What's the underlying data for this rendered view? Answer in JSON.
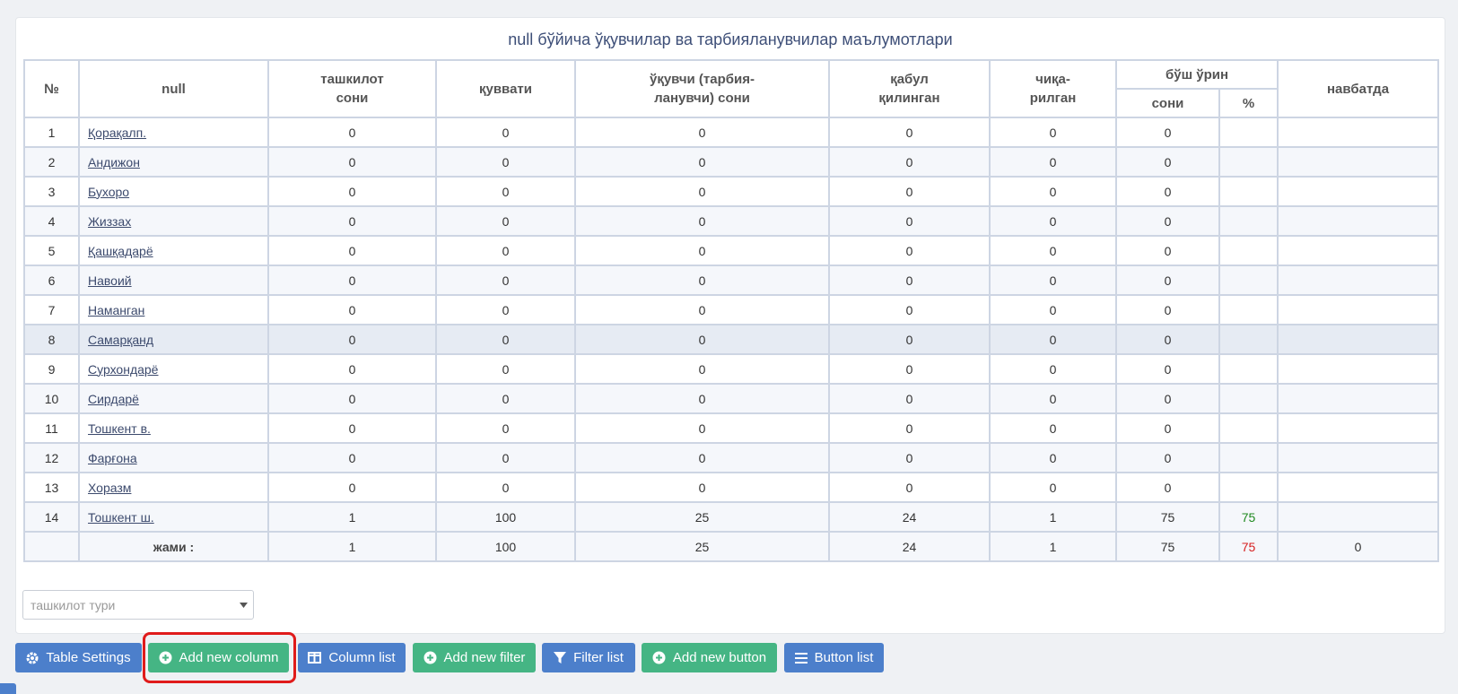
{
  "title": "null бўйича ўқувчилар ва тарбияланувчилар маълумотлари",
  "table": {
    "headers": {
      "no": "№",
      "name": "null",
      "orgs": "ташкилот\nсони",
      "capacity": "қуввати",
      "pupils": "ўқувчи (тарбия-\nланувчи) сони",
      "admitted": "қабул\nқилинган",
      "left": "чиқа-\nрилган",
      "vacant_group": "бўш ўрин",
      "vacant": "сони",
      "vacant_pct": "%",
      "queue": "навбатда"
    },
    "rows": [
      {
        "no": 1,
        "name": "Қорақалп.",
        "orgs": 0,
        "capacity": 0,
        "pupils": 0,
        "admitted": 0,
        "left": 0,
        "vacant": 0
      },
      {
        "no": 2,
        "name": "Андижон",
        "orgs": 0,
        "capacity": 0,
        "pupils": 0,
        "admitted": 0,
        "left": 0,
        "vacant": 0
      },
      {
        "no": 3,
        "name": "Бухоро",
        "orgs": 0,
        "capacity": 0,
        "pupils": 0,
        "admitted": 0,
        "left": 0,
        "vacant": 0
      },
      {
        "no": 4,
        "name": "Жиззах",
        "orgs": 0,
        "capacity": 0,
        "pupils": 0,
        "admitted": 0,
        "left": 0,
        "vacant": 0
      },
      {
        "no": 5,
        "name": "Қашқадарё",
        "orgs": 0,
        "capacity": 0,
        "pupils": 0,
        "admitted": 0,
        "left": 0,
        "vacant": 0
      },
      {
        "no": 6,
        "name": "Навоий",
        "orgs": 0,
        "capacity": 0,
        "pupils": 0,
        "admitted": 0,
        "left": 0,
        "vacant": 0
      },
      {
        "no": 7,
        "name": "Наманган",
        "orgs": 0,
        "capacity": 0,
        "pupils": 0,
        "admitted": 0,
        "left": 0,
        "vacant": 0
      },
      {
        "no": 8,
        "name": "Самарқанд",
        "orgs": 0,
        "capacity": 0,
        "pupils": 0,
        "admitted": 0,
        "left": 0,
        "vacant": 0
      },
      {
        "no": 9,
        "name": "Сурхондарё",
        "orgs": 0,
        "capacity": 0,
        "pupils": 0,
        "admitted": 0,
        "left": 0,
        "vacant": 0
      },
      {
        "no": 10,
        "name": "Сирдарё",
        "orgs": 0,
        "capacity": 0,
        "pupils": 0,
        "admitted": 0,
        "left": 0,
        "vacant": 0
      },
      {
        "no": 11,
        "name": "Тошкент в.",
        "orgs": 0,
        "capacity": 0,
        "pupils": 0,
        "admitted": 0,
        "left": 0,
        "vacant": 0
      },
      {
        "no": 12,
        "name": "Фарғона",
        "orgs": 0,
        "capacity": 0,
        "pupils": 0,
        "admitted": 0,
        "left": 0,
        "vacant": 0
      },
      {
        "no": 13,
        "name": "Хоразм",
        "orgs": 0,
        "capacity": 0,
        "pupils": 0,
        "admitted": 0,
        "left": 0,
        "vacant": 0
      },
      {
        "no": 14,
        "name": "Тошкент ш.",
        "orgs": 1,
        "capacity": 100,
        "pupils": 25,
        "admitted": 24,
        "left": 1,
        "vacant": 75,
        "vacant_pct": 75
      }
    ],
    "total": {
      "label": "жами :",
      "orgs": 1,
      "capacity": 100,
      "pupils": 25,
      "admitted": 24,
      "left": 1,
      "vacant": 75,
      "vacant_pct": 75,
      "queue": 0
    }
  },
  "filter_placeholder": "ташкилот тури",
  "buttons": [
    "Table Settings",
    "Add new column",
    "Column list",
    "Add new filter",
    "Filter list",
    "Add new button",
    "Button list"
  ]
}
